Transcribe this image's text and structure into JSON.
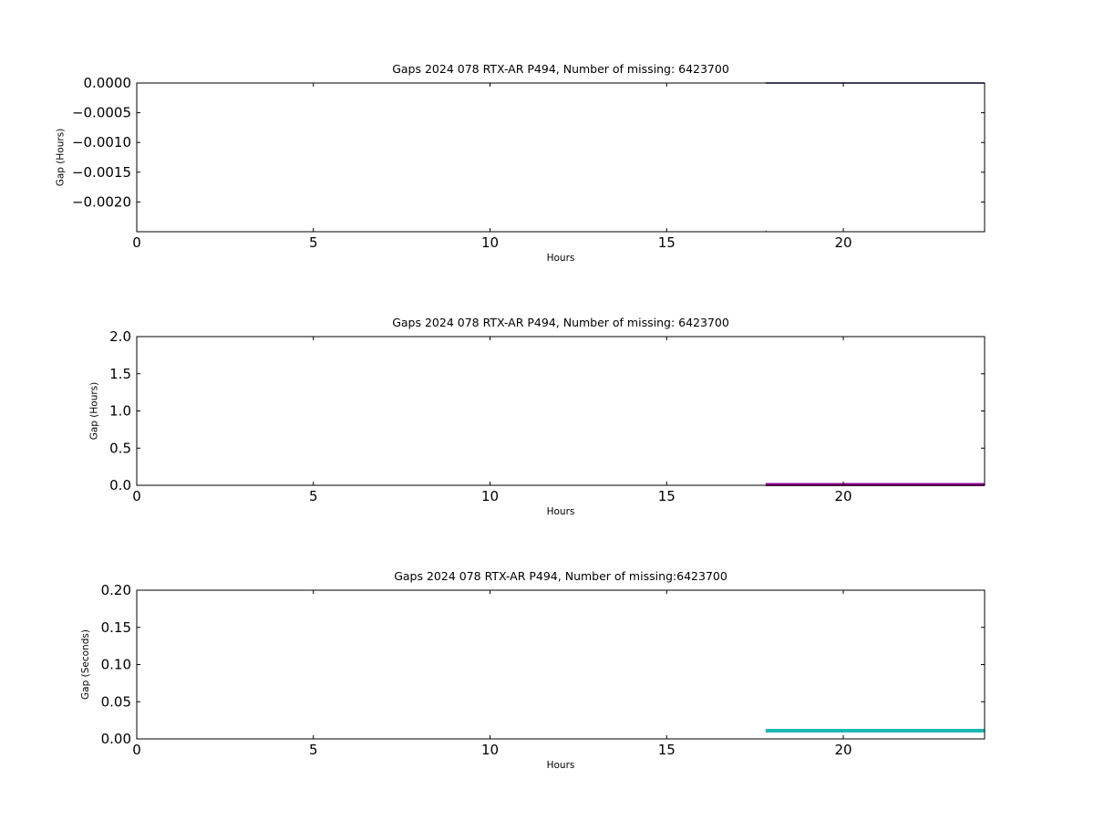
{
  "chart_data": [
    {
      "type": "line",
      "title": "Gaps 2024 078 RTX-AR  P494, Number of missing: 6423700",
      "xlabel": "Hours",
      "ylabel": "Gap (Hours)",
      "xlim": [
        0,
        24
      ],
      "ylim": [
        -0.0025,
        0.0
      ],
      "xticks": [
        0,
        5,
        10,
        15,
        20
      ],
      "xtick_labels": [
        "0",
        "5",
        "10",
        "15",
        "20"
      ],
      "yticks": [
        0.0,
        -0.0005,
        -0.001,
        -0.0015,
        -0.002
      ],
      "ytick_labels": [
        "0.0000",
        "−0.0005",
        "−0.0010",
        "−0.0015",
        "−0.0020"
      ],
      "grid": false,
      "color": "#00008b",
      "linewidth": 1.5,
      "series": [
        {
          "x": [
            17.8,
            24.0
          ],
          "y": [
            0.0,
            0.0
          ]
        },
        {
          "x": [
            17.8,
            17.82
          ],
          "y": [
            -0.00249,
            -0.00249
          ]
        }
      ]
    },
    {
      "type": "line",
      "title": "Gaps 2024 078 RTX-AR  P494, Number of missing: 6423700",
      "xlabel": "Hours",
      "ylabel": "Gap (Hours)",
      "xlim": [
        0,
        24
      ],
      "ylim": [
        0.0,
        2.0
      ],
      "xticks": [
        0,
        5,
        10,
        15,
        20
      ],
      "xtick_labels": [
        "0",
        "5",
        "10",
        "15",
        "20"
      ],
      "yticks": [
        0.0,
        0.5,
        1.0,
        1.5,
        2.0
      ],
      "ytick_labels": [
        "0.0",
        "0.5",
        "1.0",
        "1.5",
        "2.0"
      ],
      "grid": false,
      "color": "#990099",
      "linewidth": 3.5,
      "series": [
        {
          "x": [
            17.8,
            24.0
          ],
          "y": [
            0.01,
            0.01
          ]
        }
      ]
    },
    {
      "type": "line",
      "title": "Gaps 2024 078 RTX-AR  P494, Number of missing:6423700",
      "xlabel": "Hours",
      "ylabel": "Gap (Seconds)",
      "xlim": [
        0,
        24
      ],
      "ylim": [
        0.0,
        0.2
      ],
      "xticks": [
        0,
        5,
        10,
        15,
        20
      ],
      "xtick_labels": [
        "0",
        "5",
        "10",
        "15",
        "20"
      ],
      "yticks": [
        0.0,
        0.05,
        0.1,
        0.15,
        0.2
      ],
      "ytick_labels": [
        "0.00",
        "0.05",
        "0.10",
        "0.15",
        "0.20"
      ],
      "grid": false,
      "color": "#1ab8b3",
      "linewidth": 4,
      "series": [
        {
          "x": [
            17.8,
            24.0
          ],
          "y": [
            0.011,
            0.011
          ]
        }
      ]
    }
  ]
}
